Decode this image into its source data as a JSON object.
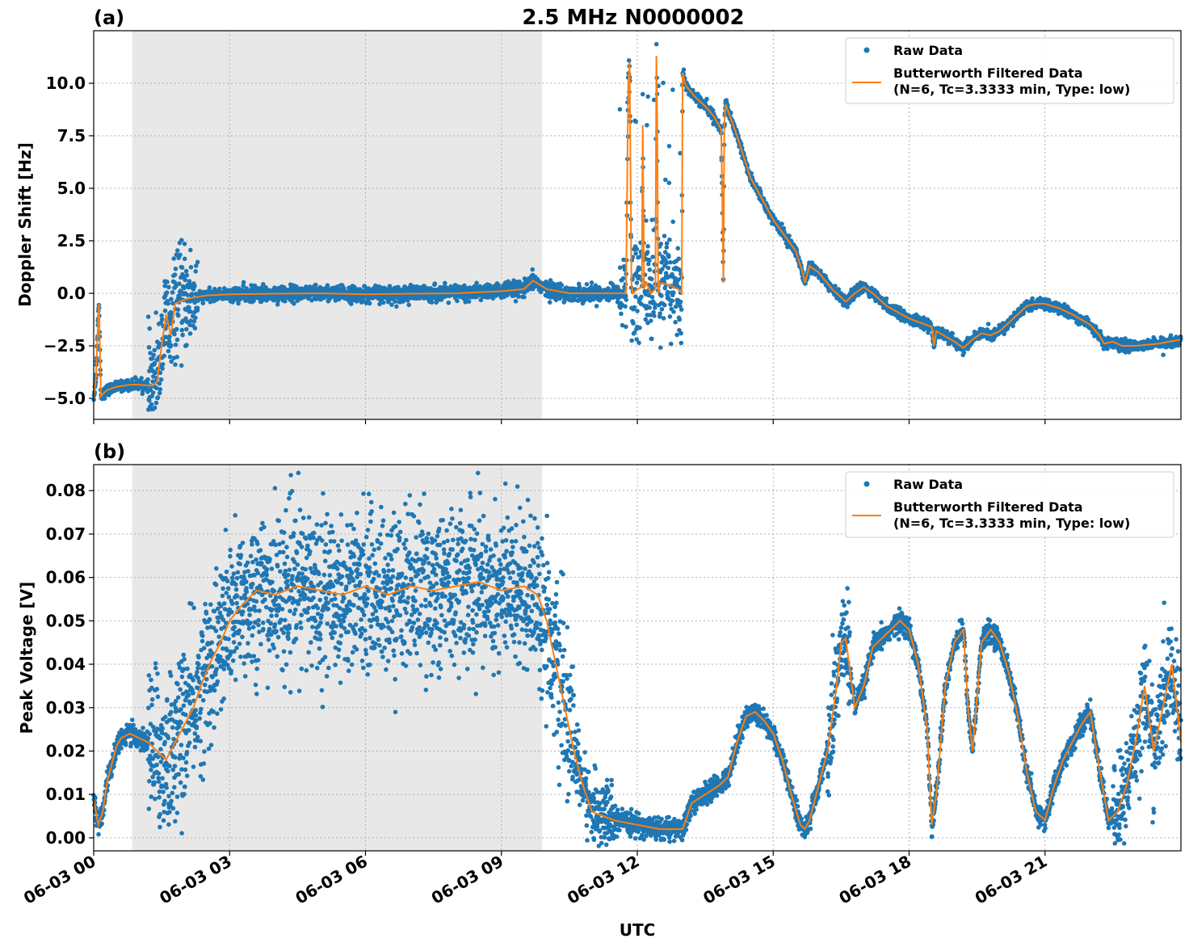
{
  "title": "2.5 MHz N0000002",
  "xlabel": "UTC",
  "x_tick_labels": [
    "06-03 00",
    "06-03 03",
    "06-03 06",
    "06-03 09",
    "06-03 12",
    "06-03 15",
    "06-03 18",
    "06-03 21"
  ],
  "colors": {
    "raw": "#1f77b4",
    "filtered": "#ff7f0e",
    "shade": "#e8e8e8"
  },
  "chart_data": [
    {
      "type": "scatter",
      "panel_label": "(a)",
      "ylabel": "Doppler Shift [Hz]",
      "x_unit": "hours UTC (2024-06-03)",
      "xlim": [
        0,
        24
      ],
      "ylim": [
        -6.0,
        12.5
      ],
      "y_ticks": [
        -5.0,
        -2.5,
        0.0,
        2.5,
        5.0,
        7.5,
        10.0
      ],
      "y_tick_labels": [
        "−5.0",
        "−2.5",
        "0.0",
        "2.5",
        "5.0",
        "7.5",
        "10.0"
      ],
      "grid": true,
      "shaded_x_range": [
        0.85,
        9.9
      ],
      "legend_position": "top-right",
      "legend": [
        "Raw Data",
        "Butterworth Filtered Data",
        "(N=6, Tc=3.3333 min, Type: low)"
      ],
      "series": [
        {
          "name": "Butterworth Filtered Data",
          "x": [
            0,
            0.05,
            0.1,
            0.12,
            0.14,
            0.16,
            0.2,
            0.3,
            0.5,
            0.8,
            1.0,
            1.3,
            1.4,
            1.5,
            1.6,
            1.7,
            1.8,
            2.0,
            2.2,
            2.5,
            3.0,
            4.0,
            5.0,
            6.0,
            7.0,
            8.0,
            9.0,
            9.5,
            9.7,
            10.0,
            10.5,
            11.0,
            11.5,
            11.75,
            11.8,
            11.83,
            11.87,
            11.9,
            12.0,
            12.1,
            12.12,
            12.15,
            12.2,
            12.3,
            12.4,
            12.42,
            12.44,
            12.46,
            12.5,
            12.7,
            12.9,
            12.98,
            13.0,
            13.05,
            13.1,
            13.3,
            13.5,
            13.7,
            13.85,
            13.88,
            13.9,
            13.92,
            13.95,
            14.0,
            14.2,
            14.5,
            15.0,
            15.5,
            15.65,
            15.7,
            15.8,
            16.0,
            16.3,
            16.6,
            16.8,
            17.0,
            17.2,
            17.5,
            18.0,
            18.5,
            18.55,
            18.6,
            19.0,
            19.2,
            19.4,
            19.6,
            19.8,
            20.0,
            20.4,
            20.6,
            20.8,
            21.0,
            21.3,
            21.6,
            22.0,
            22.2,
            22.3,
            22.5,
            22.7,
            23.0,
            23.5,
            24.0
          ],
          "y": [
            -5.0,
            -4.0,
            -1.0,
            -0.5,
            -3.0,
            -4.9,
            -4.8,
            -4.6,
            -4.45,
            -4.35,
            -4.35,
            -4.4,
            -4.2,
            -2.5,
            -1.0,
            -2.0,
            -0.5,
            -0.3,
            -0.2,
            -0.1,
            -0.05,
            -0.02,
            0.0,
            -0.05,
            -0.02,
            0.0,
            0.1,
            0.2,
            0.6,
            0.2,
            0.0,
            0.0,
            0.0,
            0.0,
            10.0,
            11.0,
            0.5,
            0.0,
            0.2,
            0.3,
            8.0,
            0.2,
            0.5,
            0.0,
            0.2,
            11.3,
            8.0,
            0.0,
            0.5,
            0.4,
            0.2,
            0.0,
            10.5,
            10.0,
            9.8,
            9.3,
            8.9,
            8.4,
            7.8,
            4.0,
            0.5,
            8.0,
            9.0,
            8.7,
            7.5,
            5.5,
            3.5,
            2.0,
            1.0,
            0.5,
            1.3,
            1.0,
            0.2,
            -0.4,
            0.0,
            0.3,
            0.0,
            -0.6,
            -1.2,
            -1.6,
            -2.5,
            -1.8,
            -2.3,
            -2.6,
            -2.2,
            -1.9,
            -2.0,
            -1.8,
            -1.0,
            -0.6,
            -0.5,
            -0.5,
            -0.7,
            -1.0,
            -1.5,
            -2.0,
            -2.4,
            -2.3,
            -2.5,
            -2.5,
            -2.4,
            -2.2
          ]
        },
        {
          "name": "Raw Data",
          "note_for_render": "",
          "x": [],
          "y": []
        }
      ]
    },
    {
      "type": "scatter",
      "panel_label": "(b)",
      "ylabel": "Peak Voltage [V]",
      "x_unit": "hours UTC (2024-06-03)",
      "xlim": [
        0,
        24
      ],
      "ylim": [
        -0.003,
        0.086
      ],
      "y_ticks": [
        0.0,
        0.01,
        0.02,
        0.03,
        0.04,
        0.05,
        0.06,
        0.07,
        0.08
      ],
      "y_tick_labels": [
        "0.00",
        "0.01",
        "0.02",
        "0.03",
        "0.04",
        "0.05",
        "0.06",
        "0.07",
        "0.08"
      ],
      "grid": true,
      "shaded_x_range": [
        0.85,
        9.9
      ],
      "legend_position": "top-right",
      "legend": [
        "Raw Data",
        "Butterworth Filtered Data",
        "(N=6, Tc=3.3333 min, Type: low)"
      ],
      "series": [
        {
          "name": "Butterworth Filtered Data",
          "x": [
            0,
            0.1,
            0.2,
            0.3,
            0.4,
            0.5,
            0.6,
            0.8,
            1.0,
            1.2,
            1.4,
            1.6,
            1.8,
            2.0,
            2.2,
            2.4,
            2.6,
            2.8,
            3.0,
            3.3,
            3.6,
            4.0,
            4.5,
            5.0,
            5.5,
            6.0,
            6.5,
            7.0,
            7.5,
            8.0,
            8.5,
            9.0,
            9.5,
            9.8,
            10.0,
            10.2,
            10.4,
            10.6,
            10.8,
            11.0,
            11.5,
            12.0,
            12.5,
            13.0,
            13.2,
            13.5,
            13.8,
            14.0,
            14.2,
            14.4,
            14.6,
            14.8,
            15.0,
            15.2,
            15.4,
            15.6,
            15.7,
            15.8,
            16.0,
            16.2,
            16.4,
            16.5,
            16.6,
            16.8,
            17.0,
            17.2,
            17.5,
            17.8,
            18.0,
            18.2,
            18.4,
            18.5,
            18.6,
            18.8,
            19.0,
            19.2,
            19.3,
            19.4,
            19.6,
            19.8,
            20.0,
            20.2,
            20.4,
            20.6,
            20.8,
            21.0,
            21.2,
            21.4,
            21.6,
            21.8,
            22.0,
            22.2,
            22.4,
            22.6,
            22.8,
            23.0,
            23.2,
            23.4,
            23.6,
            23.8,
            24.0
          ],
          "y": [
            0.009,
            0.003,
            0.006,
            0.013,
            0.017,
            0.021,
            0.023,
            0.024,
            0.023,
            0.022,
            0.02,
            0.018,
            0.022,
            0.026,
            0.03,
            0.036,
            0.041,
            0.045,
            0.05,
            0.054,
            0.057,
            0.056,
            0.058,
            0.057,
            0.056,
            0.058,
            0.056,
            0.058,
            0.057,
            0.058,
            0.059,
            0.057,
            0.058,
            0.056,
            0.05,
            0.04,
            0.03,
            0.02,
            0.012,
            0.006,
            0.004,
            0.003,
            0.002,
            0.002,
            0.008,
            0.01,
            0.012,
            0.014,
            0.022,
            0.028,
            0.029,
            0.027,
            0.024,
            0.018,
            0.01,
            0.003,
            0.002,
            0.004,
            0.012,
            0.02,
            0.035,
            0.045,
            0.046,
            0.03,
            0.035,
            0.044,
            0.047,
            0.05,
            0.048,
            0.04,
            0.025,
            0.003,
            0.01,
            0.035,
            0.045,
            0.048,
            0.03,
            0.02,
            0.045,
            0.048,
            0.045,
            0.038,
            0.028,
            0.015,
            0.006,
            0.004,
            0.012,
            0.018,
            0.022,
            0.026,
            0.029,
            0.016,
            0.004,
            0.006,
            0.012,
            0.022,
            0.035,
            0.02,
            0.03,
            0.04,
            0.022
          ]
        },
        {
          "name": "Raw Data",
          "x": [],
          "y": []
        }
      ]
    }
  ]
}
